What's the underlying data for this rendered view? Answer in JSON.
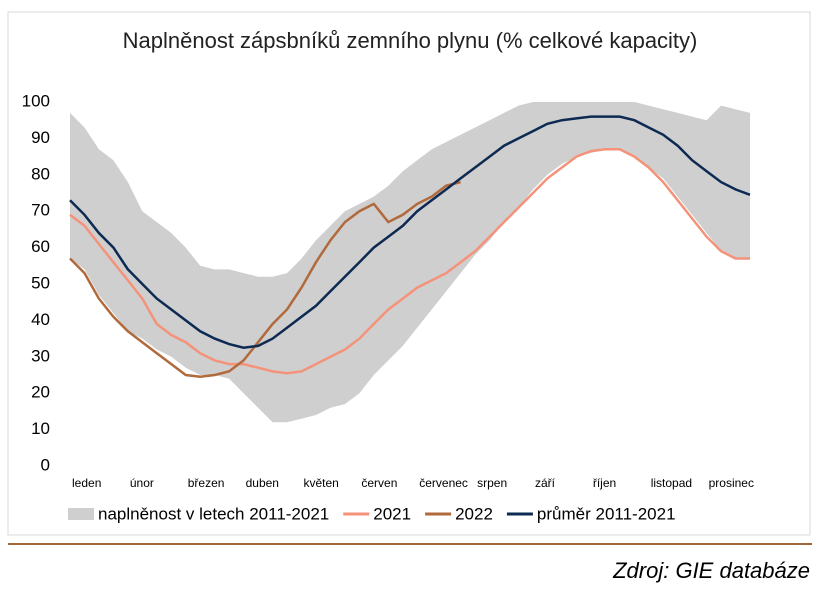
{
  "chart_data": {
    "type": "line",
    "title": "Naplněnost zápsbníků zemního plynu (% celkové kapacity)",
    "source": "Zdroj: GIE databáze",
    "categories": [
      "leden",
      null,
      null,
      null,
      "únor",
      null,
      null,
      null,
      "březen",
      null,
      null,
      null,
      "duben",
      null,
      null,
      null,
      "květen",
      null,
      null,
      null,
      "červen",
      null,
      null,
      null,
      "červenec",
      null,
      null,
      null,
      "srpen",
      null,
      null,
      null,
      "září",
      null,
      null,
      null,
      "říjen",
      null,
      null,
      null,
      "listopad",
      null,
      null,
      null,
      "prosinec",
      null,
      null,
      null
    ],
    "ylim": [
      0,
      100
    ],
    "yticks": [
      0,
      10,
      20,
      30,
      40,
      50,
      60,
      70,
      80,
      90,
      100
    ],
    "legend": "bottom",
    "series": [
      {
        "name": "naplněnost v letech 2011-2021",
        "color": "#d0cfd0",
        "values": [
          97,
          93,
          87,
          84,
          78,
          70,
          67,
          64,
          60,
          55,
          54,
          54,
          53,
          52,
          52,
          53,
          57,
          62,
          66,
          70,
          72,
          74,
          77,
          81,
          84,
          87,
          89,
          91,
          93,
          95,
          97,
          99,
          100,
          100,
          100,
          100,
          100,
          100,
          100,
          100,
          99,
          98,
          97,
          96,
          95,
          99,
          98,
          97
        ],
        "low": [
          57,
          54,
          47,
          42,
          37,
          35,
          32,
          30,
          27,
          25,
          25,
          24,
          20,
          16,
          12,
          12,
          13,
          14,
          16,
          17,
          20,
          25,
          29,
          33,
          38,
          43,
          48,
          53,
          58,
          62,
          67,
          71,
          76,
          80,
          83,
          85,
          86,
          87,
          87,
          85,
          82,
          79,
          74,
          69,
          64,
          59,
          57,
          57
        ]
      },
      {
        "name": "2021",
        "color": "#f4937a",
        "values": [
          69,
          66,
          61,
          56,
          51,
          46,
          39,
          36,
          34,
          31,
          29,
          28,
          28,
          27,
          26,
          25.5,
          26,
          28,
          30,
          32,
          35,
          39,
          43,
          46,
          49,
          51,
          53,
          56,
          59,
          63,
          67,
          71,
          75,
          79,
          82,
          85,
          86.5,
          87,
          87,
          85,
          82,
          78,
          73,
          68,
          63,
          59,
          57,
          57
        ]
      },
      {
        "name": "2022",
        "color": "#b06a3b",
        "values": [
          57,
          53,
          46,
          41,
          37,
          34,
          31,
          28,
          25,
          24.5,
          25,
          26,
          29,
          34,
          39,
          43,
          49,
          56,
          62,
          67,
          70,
          72,
          67,
          69,
          72,
          74,
          77,
          78,
          null,
          null,
          null,
          null,
          null,
          null,
          null,
          null,
          null,
          null,
          null,
          null,
          null,
          null,
          null,
          null,
          null,
          null,
          null,
          null
        ]
      },
      {
        "name": "průměr 2011-2021",
        "color": "#0d2a52",
        "values": [
          73,
          69,
          64,
          60,
          54,
          50,
          46,
          43,
          40,
          37,
          35,
          33.5,
          32.5,
          33,
          35,
          38,
          41,
          44,
          48,
          52,
          56,
          60,
          63,
          66,
          70,
          73,
          76,
          79,
          82,
          85,
          88,
          90,
          92,
          94,
          95,
          95.5,
          96,
          96,
          96,
          95,
          93,
          91,
          88,
          84,
          81,
          78,
          76,
          74.5
        ]
      }
    ]
  }
}
